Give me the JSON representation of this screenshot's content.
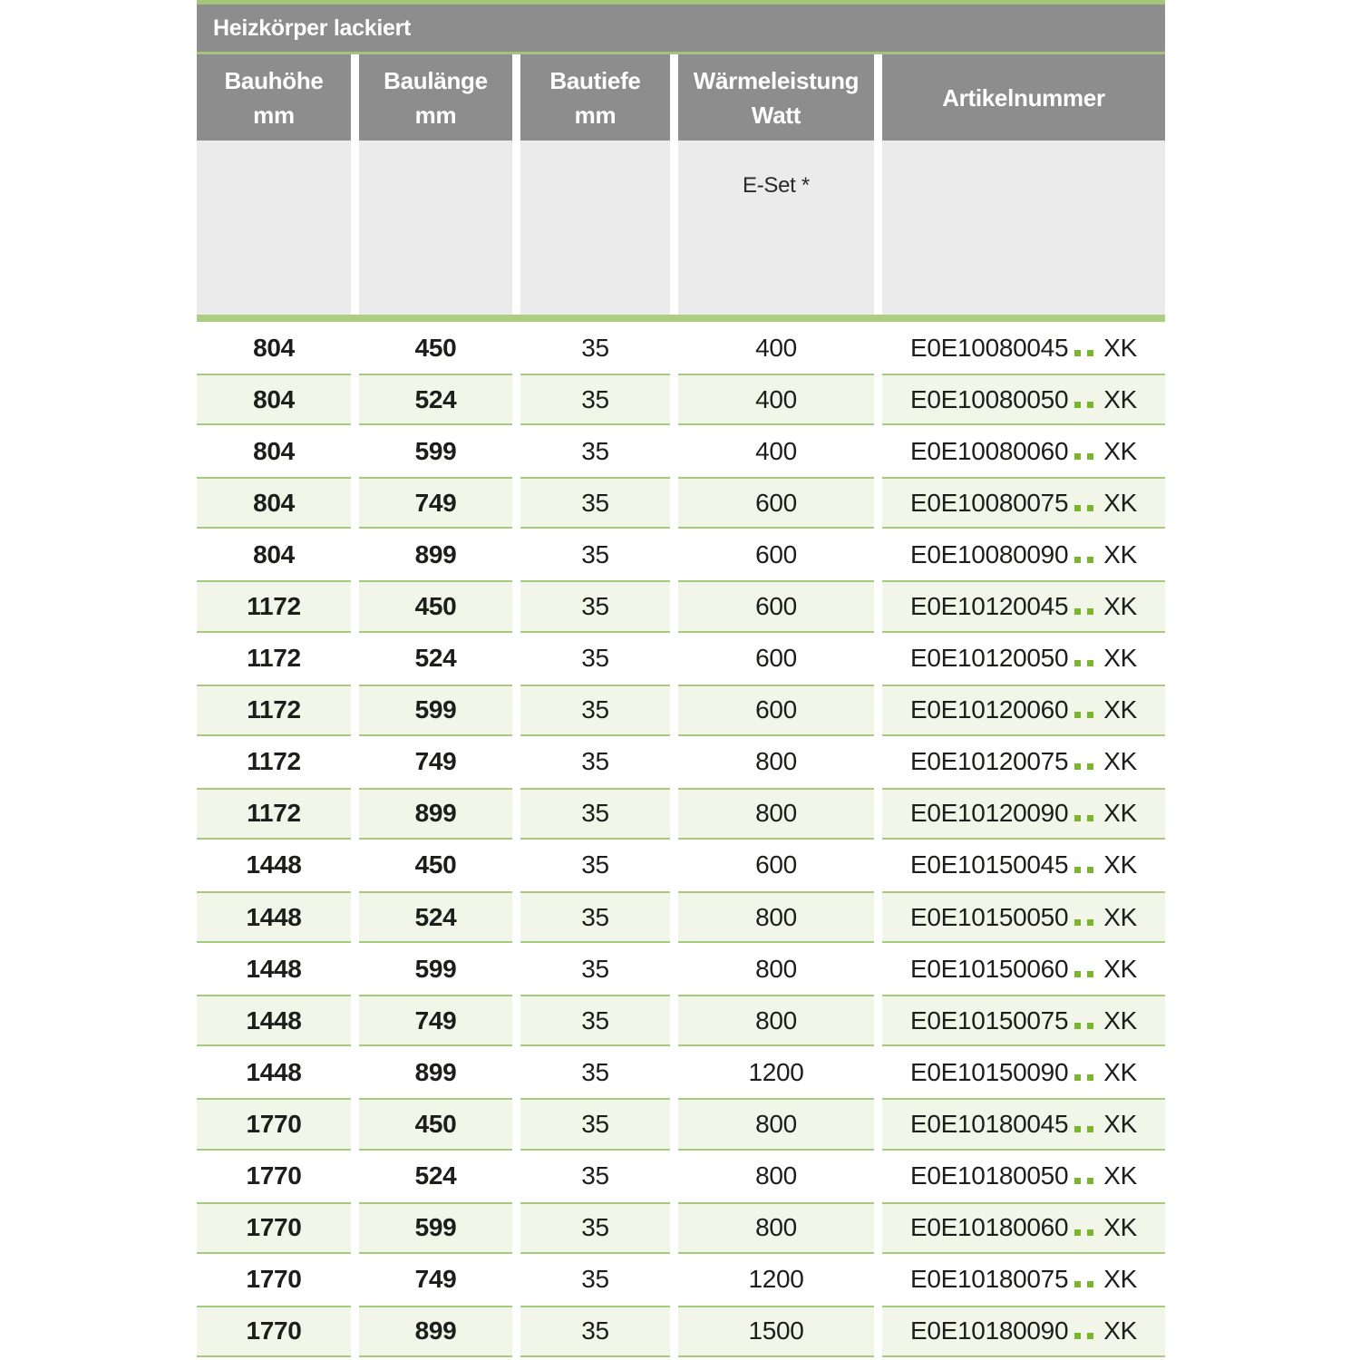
{
  "table": {
    "title": "Heizkörper lackiert",
    "columns": [
      {
        "label": "Bauhöhe",
        "unit": "mm"
      },
      {
        "label": "Baulänge",
        "unit": "mm"
      },
      {
        "label": "Bautiefe",
        "unit": "mm"
      },
      {
        "label": "Wärmeleistung",
        "unit": "Watt"
      },
      {
        "label": "Artikelnummer",
        "unit": ""
      }
    ],
    "subheader_note": "E-Set *",
    "colors": {
      "header_gray": "#8d8d8d",
      "subheader_gray": "#ebebeb",
      "accent_green": "#a5c47a",
      "divider_green": "#aecd83",
      "row_green_bg": "#f2f6e9",
      "row_green_border": "#a9ca7e",
      "dot_green": "#7ab52d",
      "text_dark": "#1d1d1b"
    },
    "rows": [
      {
        "bauhoehe": "804",
        "baulaenge": "450",
        "bautiefe": "35",
        "watt": "400",
        "artikel_prefix": "E0E10080045",
        "artikel_suffix": "XK"
      },
      {
        "bauhoehe": "804",
        "baulaenge": "524",
        "bautiefe": "35",
        "watt": "400",
        "artikel_prefix": "E0E10080050",
        "artikel_suffix": "XK"
      },
      {
        "bauhoehe": "804",
        "baulaenge": "599",
        "bautiefe": "35",
        "watt": "400",
        "artikel_prefix": "E0E10080060",
        "artikel_suffix": "XK"
      },
      {
        "bauhoehe": "804",
        "baulaenge": "749",
        "bautiefe": "35",
        "watt": "600",
        "artikel_prefix": "E0E10080075",
        "artikel_suffix": "XK"
      },
      {
        "bauhoehe": "804",
        "baulaenge": "899",
        "bautiefe": "35",
        "watt": "600",
        "artikel_prefix": "E0E10080090",
        "artikel_suffix": "XK"
      },
      {
        "bauhoehe": "1172",
        "baulaenge": "450",
        "bautiefe": "35",
        "watt": "600",
        "artikel_prefix": "E0E10120045",
        "artikel_suffix": "XK"
      },
      {
        "bauhoehe": "1172",
        "baulaenge": "524",
        "bautiefe": "35",
        "watt": "600",
        "artikel_prefix": "E0E10120050",
        "artikel_suffix": "XK"
      },
      {
        "bauhoehe": "1172",
        "baulaenge": "599",
        "bautiefe": "35",
        "watt": "600",
        "artikel_prefix": "E0E10120060",
        "artikel_suffix": "XK"
      },
      {
        "bauhoehe": "1172",
        "baulaenge": "749",
        "bautiefe": "35",
        "watt": "800",
        "artikel_prefix": "E0E10120075",
        "artikel_suffix": "XK"
      },
      {
        "bauhoehe": "1172",
        "baulaenge": "899",
        "bautiefe": "35",
        "watt": "800",
        "artikel_prefix": "E0E10120090",
        "artikel_suffix": "XK"
      },
      {
        "bauhoehe": "1448",
        "baulaenge": "450",
        "bautiefe": "35",
        "watt": "600",
        "artikel_prefix": "E0E10150045",
        "artikel_suffix": "XK"
      },
      {
        "bauhoehe": "1448",
        "baulaenge": "524",
        "bautiefe": "35",
        "watt": "800",
        "artikel_prefix": "E0E10150050",
        "artikel_suffix": "XK"
      },
      {
        "bauhoehe": "1448",
        "baulaenge": "599",
        "bautiefe": "35",
        "watt": "800",
        "artikel_prefix": "E0E10150060",
        "artikel_suffix": "XK"
      },
      {
        "bauhoehe": "1448",
        "baulaenge": "749",
        "bautiefe": "35",
        "watt": "800",
        "artikel_prefix": "E0E10150075",
        "artikel_suffix": "XK"
      },
      {
        "bauhoehe": "1448",
        "baulaenge": "899",
        "bautiefe": "35",
        "watt": "1200",
        "artikel_prefix": "E0E10150090",
        "artikel_suffix": "XK"
      },
      {
        "bauhoehe": "1770",
        "baulaenge": "450",
        "bautiefe": "35",
        "watt": "800",
        "artikel_prefix": "E0E10180045",
        "artikel_suffix": "XK"
      },
      {
        "bauhoehe": "1770",
        "baulaenge": "524",
        "bautiefe": "35",
        "watt": "800",
        "artikel_prefix": "E0E10180050",
        "artikel_suffix": "XK"
      },
      {
        "bauhoehe": "1770",
        "baulaenge": "599",
        "bautiefe": "35",
        "watt": "800",
        "artikel_prefix": "E0E10180060",
        "artikel_suffix": "XK"
      },
      {
        "bauhoehe": "1770",
        "baulaenge": "749",
        "bautiefe": "35",
        "watt": "1200",
        "artikel_prefix": "E0E10180075",
        "artikel_suffix": "XK"
      },
      {
        "bauhoehe": "1770",
        "baulaenge": "899",
        "bautiefe": "35",
        "watt": "1500",
        "artikel_prefix": "E0E10180090",
        "artikel_suffix": "XK"
      }
    ]
  }
}
